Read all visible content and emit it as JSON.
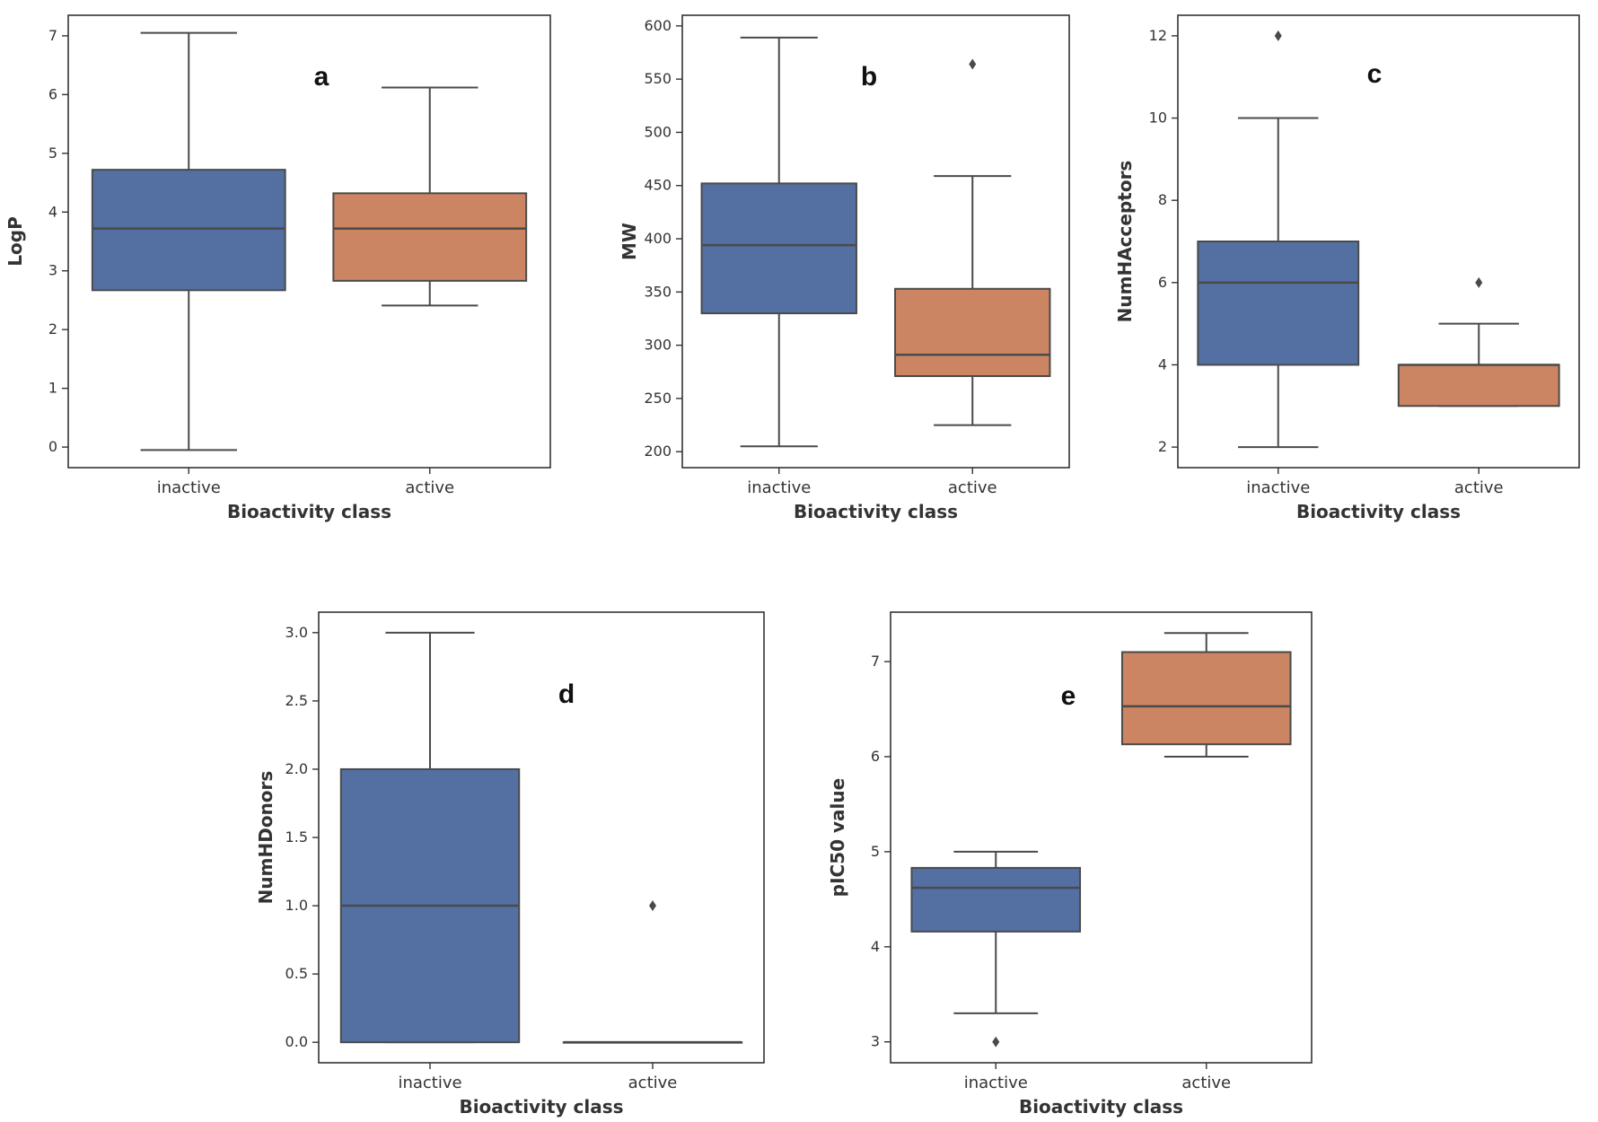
{
  "colors": {
    "inactive": "#5470a3",
    "active": "#cc8562"
  },
  "chart_data": [
    {
      "type": "boxplot",
      "panel": "a",
      "title": "",
      "xlabel": "Bioactivity class",
      "ylabel": "LogP",
      "categories": [
        "inactive",
        "active"
      ],
      "yticks": [
        0,
        1,
        2,
        3,
        4,
        5,
        6,
        7
      ],
      "ytick_labels": [
        "0",
        "1",
        "2",
        "3",
        "4",
        "5",
        "6",
        "7"
      ],
      "ylim": [
        -0.35,
        7.35
      ],
      "boxes": [
        {
          "category": "inactive",
          "whislo": -0.05,
          "q1": 2.67,
          "med": 3.72,
          "q3": 4.72,
          "whishi": 7.05,
          "fliers": []
        },
        {
          "category": "active",
          "whislo": 2.41,
          "q1": 2.83,
          "med": 3.72,
          "q3": 4.32,
          "whishi": 6.12,
          "fliers": []
        }
      ]
    },
    {
      "type": "boxplot",
      "panel": "b",
      "title": "",
      "xlabel": "Bioactivity class",
      "ylabel": "MW",
      "categories": [
        "inactive",
        "active"
      ],
      "yticks": [
        200,
        250,
        300,
        350,
        400,
        450,
        500,
        550,
        600
      ],
      "ytick_labels": [
        "200",
        "250",
        "300",
        "350",
        "400",
        "450",
        "500",
        "550",
        "600"
      ],
      "ylim": [
        185,
        610
      ],
      "boxes": [
        {
          "category": "inactive",
          "whislo": 205,
          "q1": 330,
          "med": 394,
          "q3": 452,
          "whishi": 589,
          "fliers": []
        },
        {
          "category": "active",
          "whislo": 225,
          "q1": 271,
          "med": 291,
          "q3": 353,
          "whishi": 459,
          "fliers": [
            564
          ]
        }
      ]
    },
    {
      "type": "boxplot",
      "panel": "c",
      "title": "",
      "xlabel": "Bioactivity class",
      "ylabel": "NumHAcceptors",
      "categories": [
        "inactive",
        "active"
      ],
      "yticks": [
        2,
        4,
        6,
        8,
        10,
        12
      ],
      "ytick_labels": [
        "2",
        "4",
        "6",
        "8",
        "10",
        "12"
      ],
      "ylim": [
        1.5,
        12.5
      ],
      "boxes": [
        {
          "category": "inactive",
          "whislo": 2,
          "q1": 4,
          "med": 6,
          "q3": 7,
          "whishi": 10,
          "fliers": [
            12
          ]
        },
        {
          "category": "active",
          "whislo": 3,
          "q1": 3,
          "med": 4,
          "q3": 4,
          "whishi": 5,
          "fliers": [
            6
          ]
        }
      ]
    },
    {
      "type": "boxplot",
      "panel": "d",
      "title": "",
      "xlabel": "Bioactivity class",
      "ylabel": "NumHDonors",
      "categories": [
        "inactive",
        "active"
      ],
      "yticks": [
        0,
        0.5,
        1,
        1.5,
        2,
        2.5,
        3
      ],
      "ytick_labels": [
        "0.0",
        "0.5",
        "1.0",
        "1.5",
        "2.0",
        "2.5",
        "3.0"
      ],
      "ylim": [
        -0.15,
        3.15
      ],
      "boxes": [
        {
          "category": "inactive",
          "whislo": 0,
          "q1": 0,
          "med": 1,
          "q3": 2,
          "whishi": 3,
          "fliers": []
        },
        {
          "category": "active",
          "whislo": 0,
          "q1": 0,
          "med": 0,
          "q3": 0,
          "whishi": 0,
          "fliers": [
            1
          ]
        }
      ]
    },
    {
      "type": "boxplot",
      "panel": "e",
      "title": "",
      "xlabel": "Bioactivity class",
      "ylabel": "pIC50 value",
      "categories": [
        "inactive",
        "active"
      ],
      "yticks": [
        3,
        4,
        5,
        6,
        7
      ],
      "ytick_labels": [
        "3",
        "4",
        "5",
        "6",
        "7"
      ],
      "ylim": [
        2.78,
        7.52
      ],
      "boxes": [
        {
          "category": "inactive",
          "whislo": 3.3,
          "q1": 4.16,
          "med": 4.62,
          "q3": 4.83,
          "whishi": 5.0,
          "fliers": [
            3.0
          ]
        },
        {
          "category": "active",
          "whislo": 6.0,
          "q1": 6.13,
          "med": 6.53,
          "q3": 7.1,
          "whishi": 7.3,
          "fliers": []
        }
      ]
    }
  ]
}
